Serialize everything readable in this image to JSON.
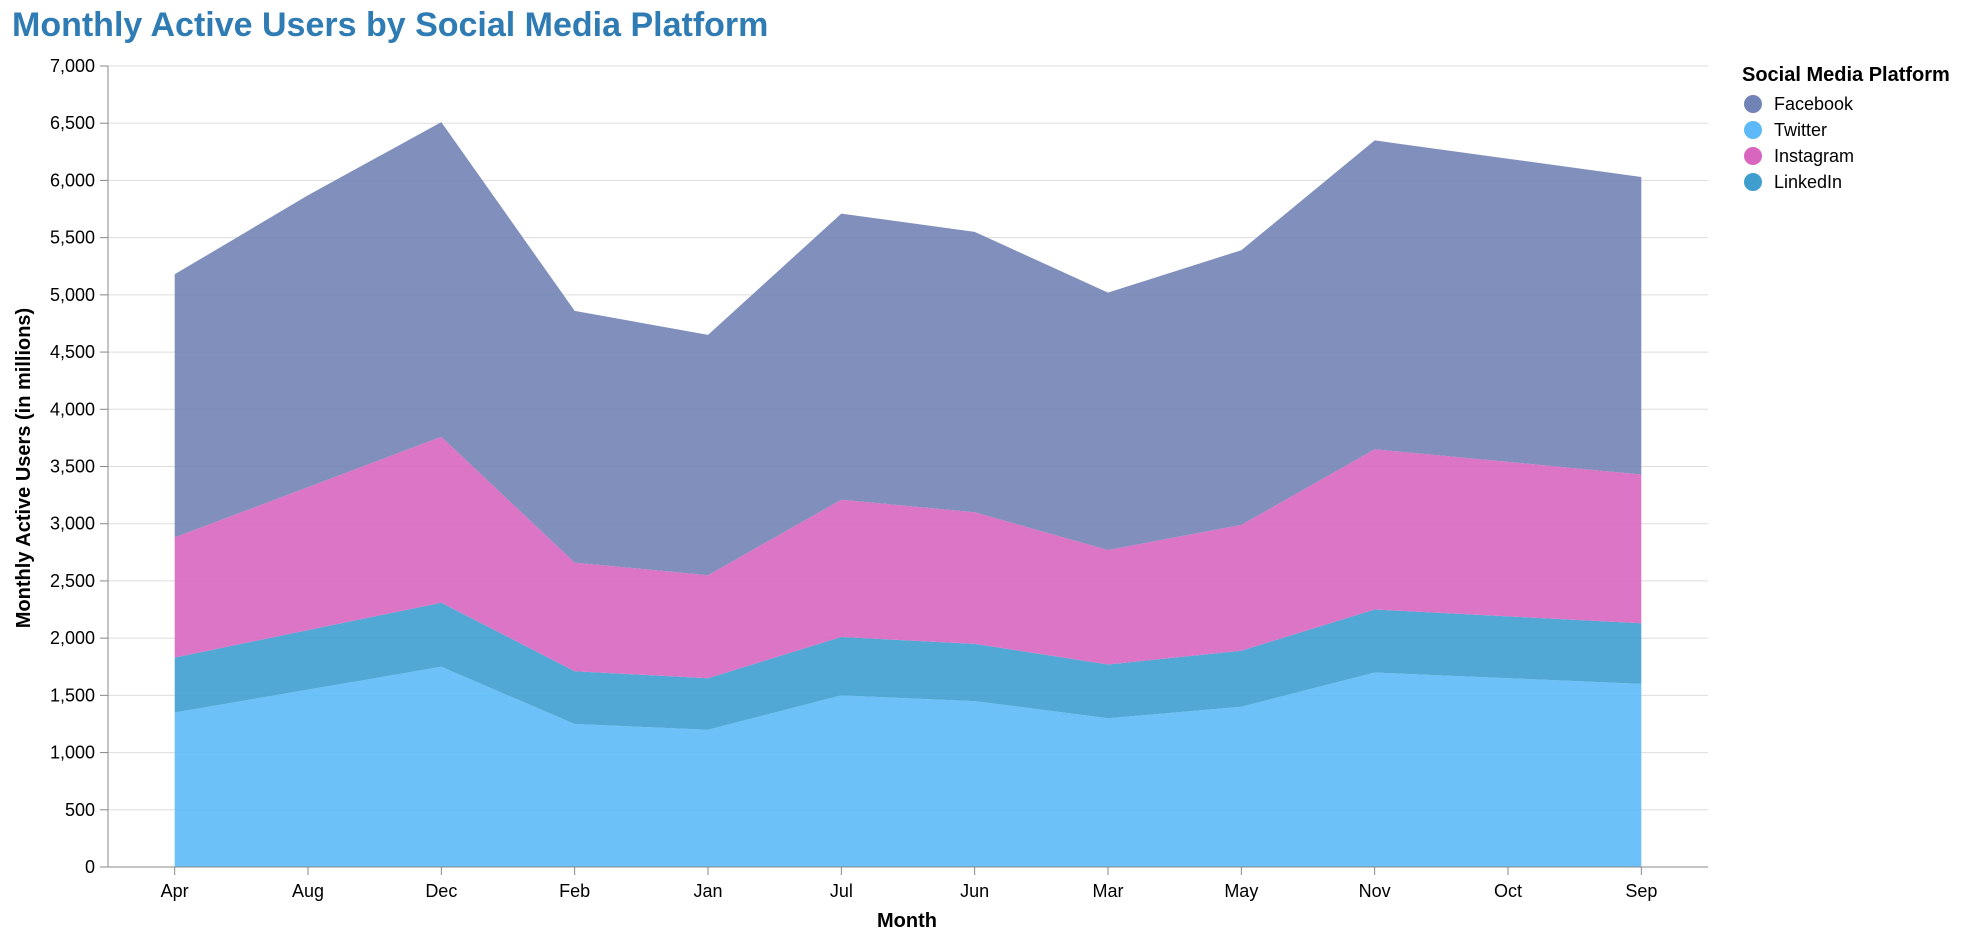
{
  "title": "Monthly Active Users by Social Media Platform",
  "chart_data": {
    "type": "area",
    "stacked": true,
    "xlabel": "Month",
    "ylabel": "Monthly Active Users (in millions)",
    "ylim": [
      0,
      7000
    ],
    "yticks": [
      0,
      500,
      1000,
      1500,
      2000,
      2500,
      3000,
      3500,
      4000,
      4500,
      5000,
      5500,
      6000,
      6500,
      7000
    ],
    "grid": true,
    "legend_position": "top-right",
    "legend_title": "Social Media Platform",
    "categories": [
      "Apr",
      "Aug",
      "Dec",
      "Feb",
      "Jan",
      "Jul",
      "Jun",
      "Mar",
      "May",
      "Nov",
      "Oct",
      "Sep"
    ],
    "series": [
      {
        "name": "Twitter",
        "color": "#5BBAF7",
        "values": [
          1350,
          1550,
          1750,
          1250,
          1200,
          1500,
          1450,
          1300,
          1400,
          1700,
          1650,
          1600
        ]
      },
      {
        "name": "LinkedIn",
        "color": "#3E9FCF",
        "values": [
          480,
          520,
          560,
          460,
          450,
          510,
          500,
          470,
          490,
          550,
          540,
          530
        ]
      },
      {
        "name": "Instagram",
        "color": "#D866BF",
        "values": [
          1050,
          1250,
          1450,
          950,
          900,
          1200,
          1150,
          1000,
          1100,
          1400,
          1350,
          1300
        ]
      },
      {
        "name": "Facebook",
        "color": "#7283B5",
        "values": [
          2300,
          2550,
          2750,
          2200,
          2100,
          2500,
          2450,
          2250,
          2400,
          2700,
          2650,
          2600
        ]
      }
    ],
    "legend_order": [
      "Facebook",
      "Twitter",
      "Instagram",
      "LinkedIn"
    ]
  }
}
